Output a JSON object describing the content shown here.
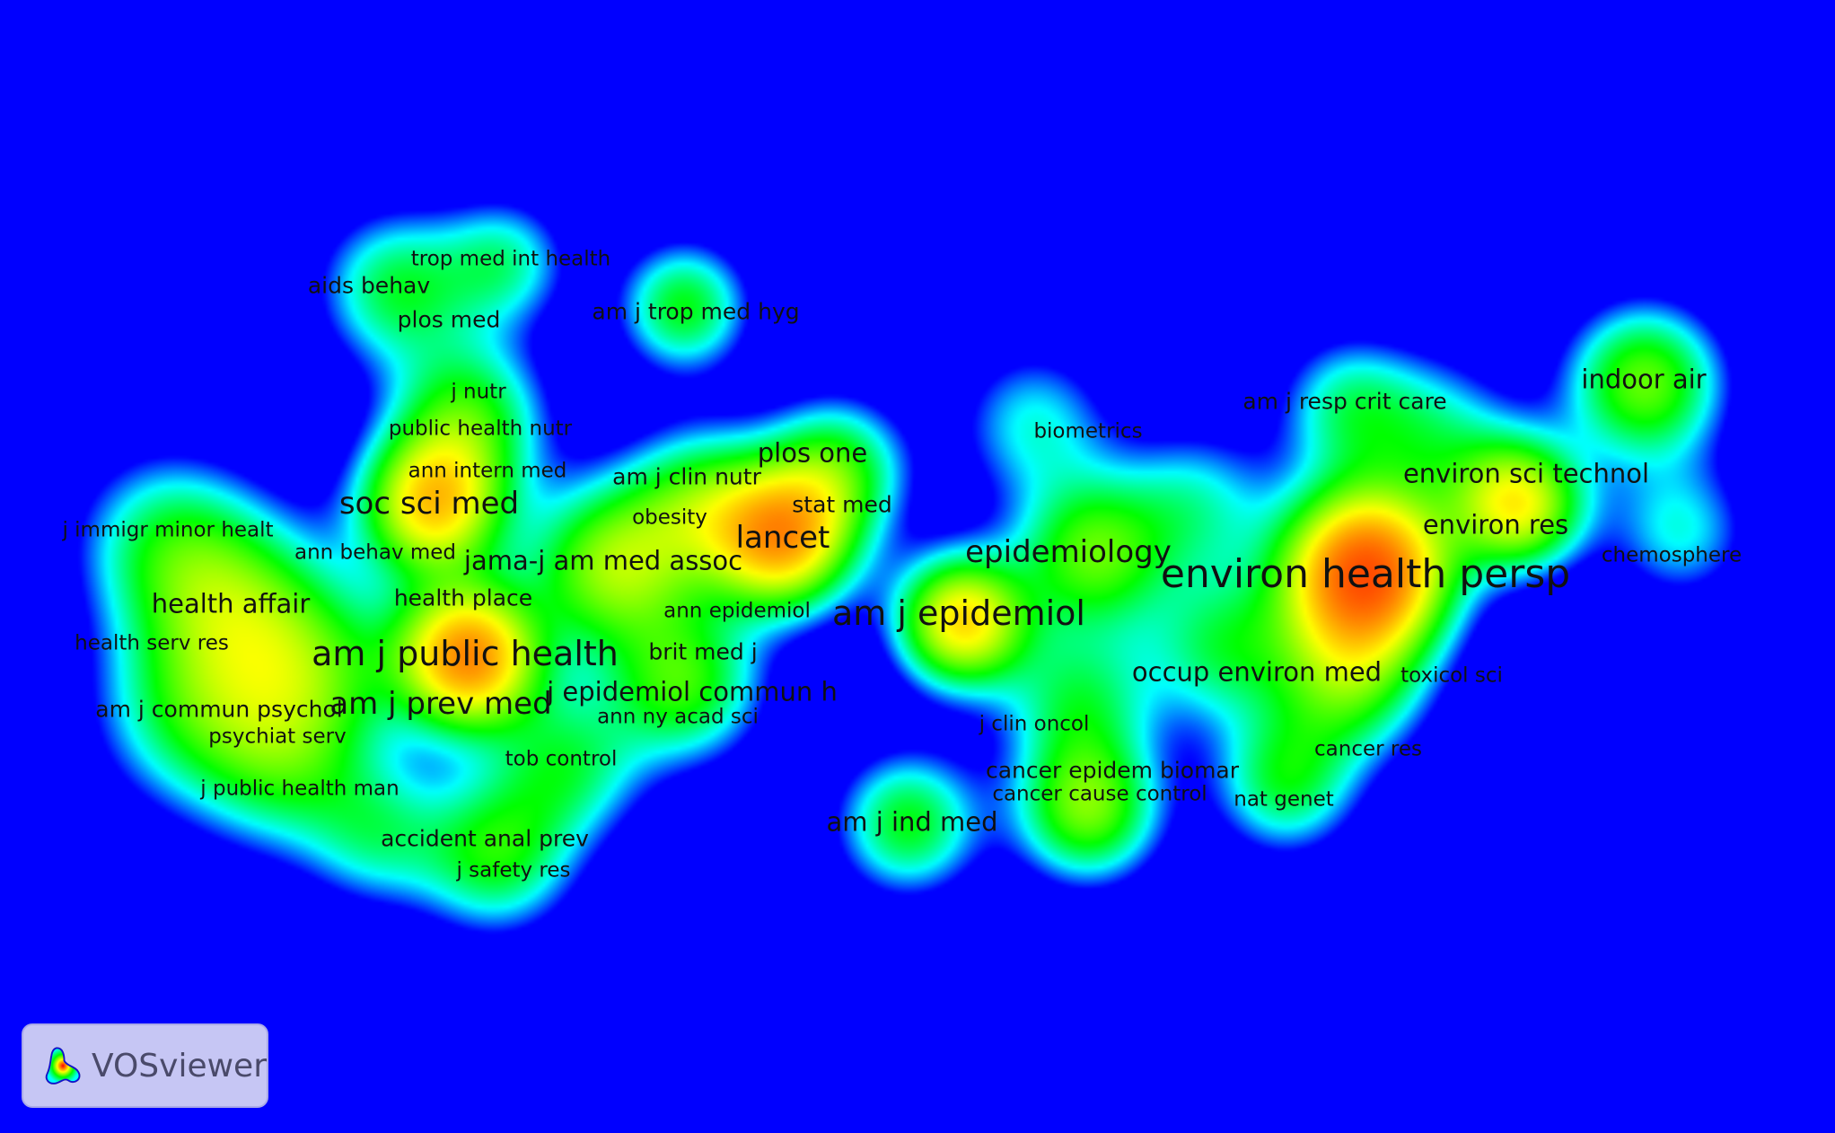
{
  "app": {
    "brand_label": "VOSviewer",
    "logo_icon": "vosviewer-logo-icon"
  },
  "colors": {
    "background": "#0000ff",
    "density_scale": [
      "#0000ff",
      "#00ffff",
      "#00ff00",
      "#ffff00",
      "#ff0000"
    ],
    "label": "#111111"
  },
  "density_map": {
    "labels": [
      {
        "text": "trop med int health",
        "size": 1
      },
      {
        "text": "aids behav",
        "size": 2
      },
      {
        "text": "plos med",
        "size": 2
      },
      {
        "text": "am j trop med hyg",
        "size": 2
      },
      {
        "text": "j nutr",
        "size": 1
      },
      {
        "text": "public health nutr",
        "size": 1
      },
      {
        "text": "ann intern med",
        "size": 1
      },
      {
        "text": "soc sci med",
        "size": 4
      },
      {
        "text": "am j clin nutr",
        "size": 2
      },
      {
        "text": "plos one",
        "size": 3
      },
      {
        "text": "obesity",
        "size": 1
      },
      {
        "text": "stat med",
        "size": 2
      },
      {
        "text": "lancet",
        "size": 4
      },
      {
        "text": "j immigr minor healt",
        "size": 1
      },
      {
        "text": "ann behav med",
        "size": 1
      },
      {
        "text": "jama-j am med assoc",
        "size": 3
      },
      {
        "text": "health affair",
        "size": 3
      },
      {
        "text": "health place",
        "size": 2
      },
      {
        "text": "ann epidemiol",
        "size": 1
      },
      {
        "text": "am j epidemiol",
        "size": 5
      },
      {
        "text": "epidemiology",
        "size": 4
      },
      {
        "text": "health serv res",
        "size": 1
      },
      {
        "text": "am j public health",
        "size": 5
      },
      {
        "text": "brit med j",
        "size": 2
      },
      {
        "text": "am j commun psychol",
        "size": 2
      },
      {
        "text": "am j prev med",
        "size": 4
      },
      {
        "text": "j epidemiol commun h",
        "size": 3
      },
      {
        "text": "ann ny acad sci",
        "size": 1
      },
      {
        "text": "psychiat serv",
        "size": 1
      },
      {
        "text": "tob control",
        "size": 1
      },
      {
        "text": "j public health man",
        "size": 1
      },
      {
        "text": "accident anal prev",
        "size": 2
      },
      {
        "text": "j safety res",
        "size": 1
      },
      {
        "text": "biometrics",
        "size": 1
      },
      {
        "text": "am j resp crit care",
        "size": 2
      },
      {
        "text": "indoor air",
        "size": 3
      },
      {
        "text": "environ sci technol",
        "size": 3
      },
      {
        "text": "environ res",
        "size": 3
      },
      {
        "text": "chemosphere",
        "size": 1
      },
      {
        "text": "environ health persp",
        "size": 6
      },
      {
        "text": "occup environ med",
        "size": 3
      },
      {
        "text": "toxicol sci",
        "size": 1
      },
      {
        "text": "j clin oncol",
        "size": 1
      },
      {
        "text": "cancer res",
        "size": 1
      },
      {
        "text": "cancer epidem biomar",
        "size": 2
      },
      {
        "text": "cancer cause control",
        "size": 1
      },
      {
        "text": "nat genet",
        "size": 1
      },
      {
        "text": "am j ind med",
        "size": 3
      }
    ]
  }
}
